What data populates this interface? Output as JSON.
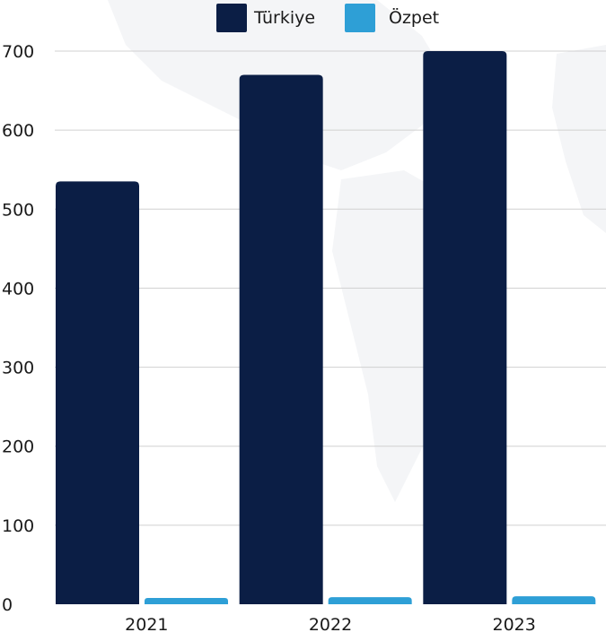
{
  "chart_data": {
    "type": "bar",
    "categories": [
      "2021",
      "2022",
      "2023"
    ],
    "series": [
      {
        "name": "Türkiye",
        "color": "#0b1e45",
        "values": [
          535,
          670,
          700
        ]
      },
      {
        "name": "Özpet",
        "color": "#2e9fd6",
        "values": [
          8,
          9,
          10
        ]
      }
    ],
    "yticks": [
      "0",
      "100",
      "200",
      "300",
      "400",
      "500",
      "600",
      "700"
    ],
    "ylim": [
      0,
      700
    ],
    "grid": true,
    "legend_position": "top-center"
  }
}
